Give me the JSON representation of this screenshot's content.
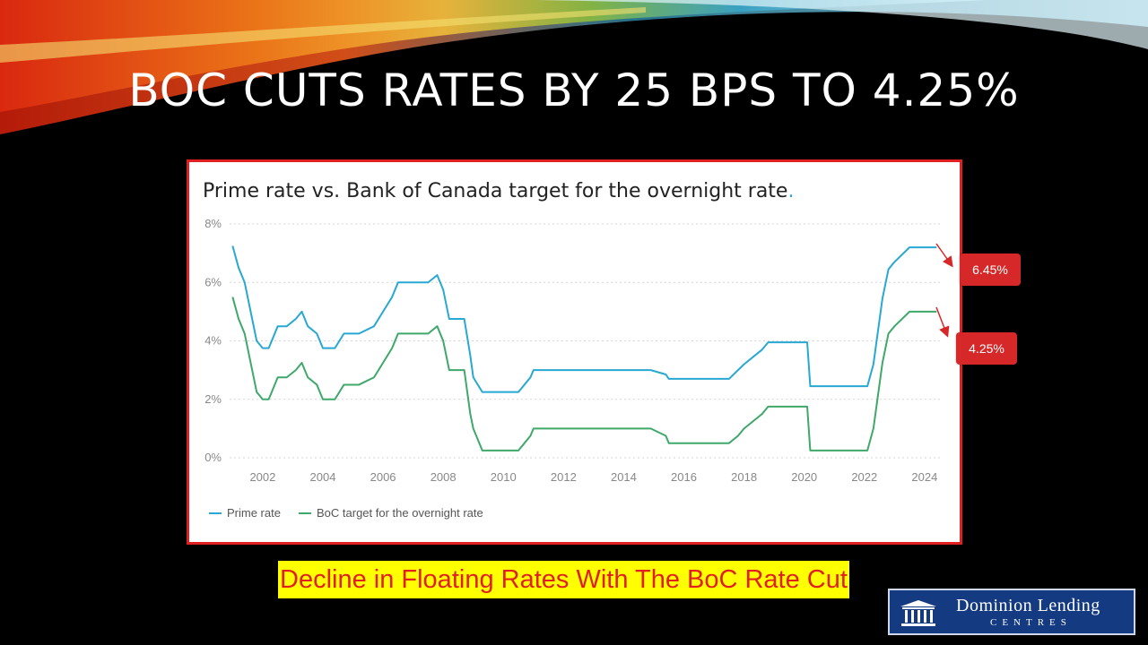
{
  "slide": {
    "title": "BOC CUTS RATES BY 25 BPS TO 4.25%",
    "caption": "Decline in Floating Rates With The BoC Rate Cut"
  },
  "logo": {
    "line1": "Dominion Lending",
    "line2": "CENTRES"
  },
  "callouts": {
    "prime_new": "6.45%",
    "boc_new": "4.25%"
  },
  "colors": {
    "prime": "#28a8d2",
    "boc": "#3fa86a",
    "callout": "#d62828",
    "border": "#e02020"
  },
  "chart_data": {
    "type": "line",
    "title": "Prime rate vs. Bank of Canada target for the overnight rate",
    "xlabel": "",
    "ylabel": "",
    "xlim": [
      2000.9,
      2024.6
    ],
    "ylim": [
      0,
      8
    ],
    "y_ticks": [
      "0%",
      "2%",
      "4%",
      "6%",
      "8%"
    ],
    "x_ticks": [
      "2002",
      "2004",
      "2006",
      "2008",
      "2010",
      "2012",
      "2014",
      "2016",
      "2018",
      "2020",
      "2022",
      "2024"
    ],
    "grid": true,
    "legend_position": "bottom-left",
    "series": [
      {
        "name": "Prime rate",
        "x": [
          2001.0,
          2001.2,
          2001.4,
          2001.6,
          2001.8,
          2002.0,
          2002.2,
          2002.3,
          2002.5,
          2002.8,
          2003.1,
          2003.3,
          2003.5,
          2003.8,
          2004.0,
          2004.4,
          2004.7,
          2005.2,
          2005.7,
          2006.0,
          2006.3,
          2006.5,
          2007.5,
          2007.8,
          2008.0,
          2008.2,
          2008.7,
          2008.9,
          2009.0,
          2009.3,
          2010.5,
          2010.7,
          2010.9,
          2011.0,
          2014.9,
          2015.4,
          2015.5,
          2017.5,
          2017.8,
          2018.0,
          2018.3,
          2018.6,
          2018.8,
          2020.1,
          2020.2,
          2022.1,
          2022.3,
          2022.5,
          2022.6,
          2022.8,
          2023.0,
          2023.5,
          2023.7,
          2024.4
        ],
        "values": [
          7.25,
          6.5,
          6.0,
          5.0,
          4.0,
          3.75,
          3.75,
          4.0,
          4.5,
          4.5,
          4.75,
          5.0,
          4.5,
          4.25,
          3.75,
          3.75,
          4.25,
          4.25,
          4.5,
          5.0,
          5.5,
          6.0,
          6.0,
          6.25,
          5.75,
          4.75,
          4.75,
          3.5,
          2.75,
          2.25,
          2.25,
          2.5,
          2.75,
          3.0,
          3.0,
          2.85,
          2.7,
          2.7,
          3.0,
          3.2,
          3.45,
          3.7,
          3.95,
          3.95,
          2.45,
          2.45,
          3.2,
          4.7,
          5.45,
          6.45,
          6.7,
          7.2,
          7.2,
          7.2
        ]
      },
      {
        "name": "BoC target for the overnight rate",
        "x": [
          2001.0,
          2001.2,
          2001.4,
          2001.6,
          2001.8,
          2002.0,
          2002.2,
          2002.3,
          2002.5,
          2002.8,
          2003.1,
          2003.3,
          2003.5,
          2003.8,
          2004.0,
          2004.4,
          2004.7,
          2005.2,
          2005.7,
          2006.0,
          2006.3,
          2006.5,
          2007.5,
          2007.8,
          2008.0,
          2008.2,
          2008.7,
          2008.9,
          2009.0,
          2009.3,
          2010.5,
          2010.7,
          2010.9,
          2011.0,
          2014.9,
          2015.4,
          2015.5,
          2017.5,
          2017.8,
          2018.0,
          2018.3,
          2018.6,
          2018.8,
          2020.1,
          2020.2,
          2022.1,
          2022.3,
          2022.5,
          2022.6,
          2022.8,
          2023.0,
          2023.5,
          2023.7,
          2024.4
        ],
        "values": [
          5.5,
          4.75,
          4.25,
          3.25,
          2.25,
          2.0,
          2.0,
          2.25,
          2.75,
          2.75,
          3.0,
          3.25,
          2.75,
          2.5,
          2.0,
          2.0,
          2.5,
          2.5,
          2.75,
          3.25,
          3.75,
          4.25,
          4.25,
          4.5,
          4.0,
          3.0,
          3.0,
          1.5,
          1.0,
          0.25,
          0.25,
          0.5,
          0.75,
          1.0,
          1.0,
          0.75,
          0.5,
          0.5,
          0.75,
          1.0,
          1.25,
          1.5,
          1.75,
          1.75,
          0.25,
          0.25,
          1.0,
          2.5,
          3.25,
          4.25,
          4.5,
          5.0,
          5.0,
          5.0
        ]
      }
    ]
  }
}
